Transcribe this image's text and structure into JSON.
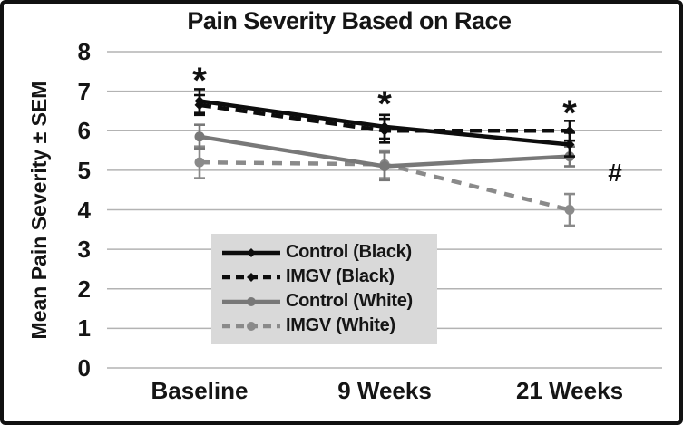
{
  "frame": {
    "border_color": "#111111",
    "background": "#ffffff"
  },
  "chart_data": {
    "type": "line",
    "title": "Pain Severity Based on Race",
    "ylabel": "Mean Pain Severity ± SEM",
    "xlabel": "",
    "categories": [
      "Baseline",
      "9 Weeks",
      "21 Weeks"
    ],
    "ylim": [
      0,
      8
    ],
    "yticks": [
      0,
      1,
      2,
      3,
      4,
      5,
      6,
      7,
      8
    ],
    "grid": true,
    "gridline_color": "#b3b3b3",
    "legend": {
      "position": "inside-bottom-center",
      "background": "#d9d9d9"
    },
    "series": [
      {
        "name": "Control (Black)",
        "color": "#0d0d0d",
        "line": "solid",
        "marker": "diamond",
        "values": [
          6.75,
          6.1,
          5.65
        ],
        "sem": [
          0.3,
          0.3,
          0.3
        ]
      },
      {
        "name": "IMGV (Black)",
        "color": "#0d0d0d",
        "line": "dashed",
        "marker": "diamond",
        "values": [
          6.65,
          6.0,
          6.0
        ],
        "sem": [
          0.25,
          0.3,
          0.25
        ]
      },
      {
        "name": "Control (White)",
        "color": "#787878",
        "line": "solid",
        "marker": "circle",
        "values": [
          5.85,
          5.1,
          5.35
        ],
        "sem": [
          0.3,
          0.35,
          0.25
        ]
      },
      {
        "name": "IMGV (White)",
        "color": "#8a8a8a",
        "line": "dashed",
        "marker": "circle",
        "values": [
          5.2,
          5.15,
          4.0
        ],
        "sem": [
          0.4,
          0.35,
          0.4
        ]
      }
    ],
    "annotations": [
      {
        "text": "*",
        "category": 0,
        "value": 7.45,
        "dx": 0
      },
      {
        "text": "*",
        "category": 1,
        "value": 6.85,
        "dx": 0
      },
      {
        "text": "*",
        "category": 2,
        "value": 6.62,
        "dx": 0
      },
      {
        "text": "#",
        "category": 2,
        "value": 4.95,
        "dx": 50
      }
    ]
  }
}
